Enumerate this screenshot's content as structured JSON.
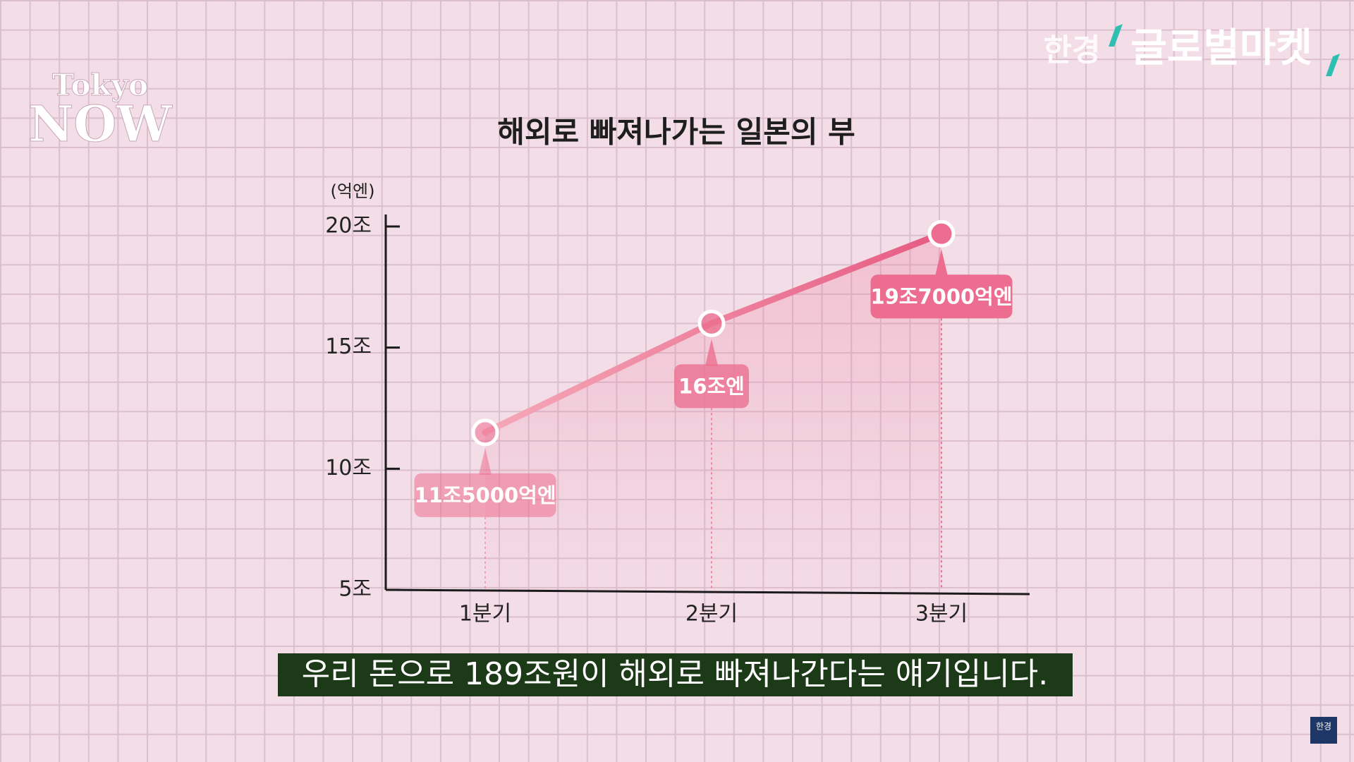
{
  "chart_data": {
    "type": "line",
    "title": "해외로 빠져나가는 일본의 부",
    "y_unit": "(억엔)",
    "categories": [
      "1분기",
      "2분기",
      "3분기"
    ],
    "series": [
      {
        "name": "해외로 빠져나가는 일본의 부",
        "color": "#ec6d8f",
        "values": [
          115000,
          160000,
          197000
        ],
        "value_labels": [
          "11조5000억엔",
          "16조엔",
          "19조7000억엔"
        ]
      }
    ],
    "ylim": [
      50000,
      200000
    ],
    "yticks": [
      {
        "value": 50000,
        "label": "5조"
      },
      {
        "value": 100000,
        "label": "10조"
      },
      {
        "value": 150000,
        "label": "15조"
      },
      {
        "value": 200000,
        "label": "20조"
      }
    ],
    "grid": false
  },
  "overlay": {
    "logo_top": "Tokyo",
    "logo_bottom": "NOW",
    "brand": "한경",
    "brand_program": "글로벌마켓",
    "caption": "우리 돈으로 189조원이 해외로 빠져나간다는 얘기입니다.",
    "corner_badge": "한경"
  }
}
